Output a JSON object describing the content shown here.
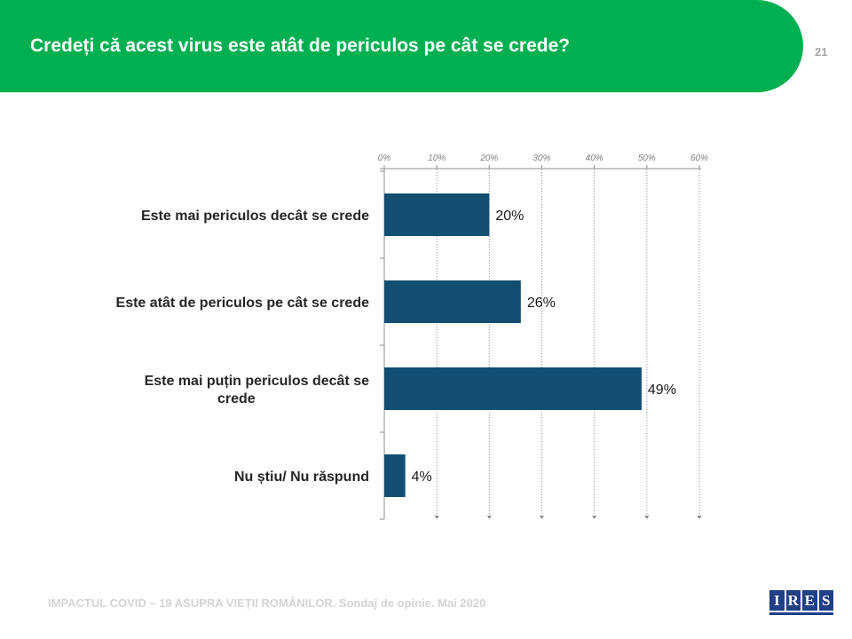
{
  "slide": {
    "title": "Credeți că acest virus este atât de periculos pe cât se crede?",
    "page_number": "21",
    "footer": "IMPACTUL COVID – 19 ASUPRA VIEȚII ROMÂNILOR. Sondaj de opinie. Mai 2020",
    "logo": {
      "letters": [
        "I",
        "R",
        "E",
        "S"
      ]
    }
  },
  "colors": {
    "header_band": "#00b050",
    "bar": "#124e72",
    "logo": "#1f3f86"
  },
  "chart_data": {
    "type": "bar",
    "orientation": "horizontal",
    "categories": [
      "Este mai periculos decât se crede",
      "Este atât de periculos pe cât se crede",
      "Este mai puțin periculos decât se crede",
      "Nu știu/ Nu răspund"
    ],
    "values": [
      20,
      26,
      49,
      4
    ],
    "data_labels": [
      "20%",
      "26%",
      "49%",
      "4%"
    ],
    "x_ticks": [
      "0%",
      "10%",
      "20%",
      "30%",
      "40%",
      "50%",
      "60%"
    ],
    "xlim": [
      0,
      60
    ],
    "x_axis_position": "top",
    "grid": true,
    "legend": "none"
  }
}
